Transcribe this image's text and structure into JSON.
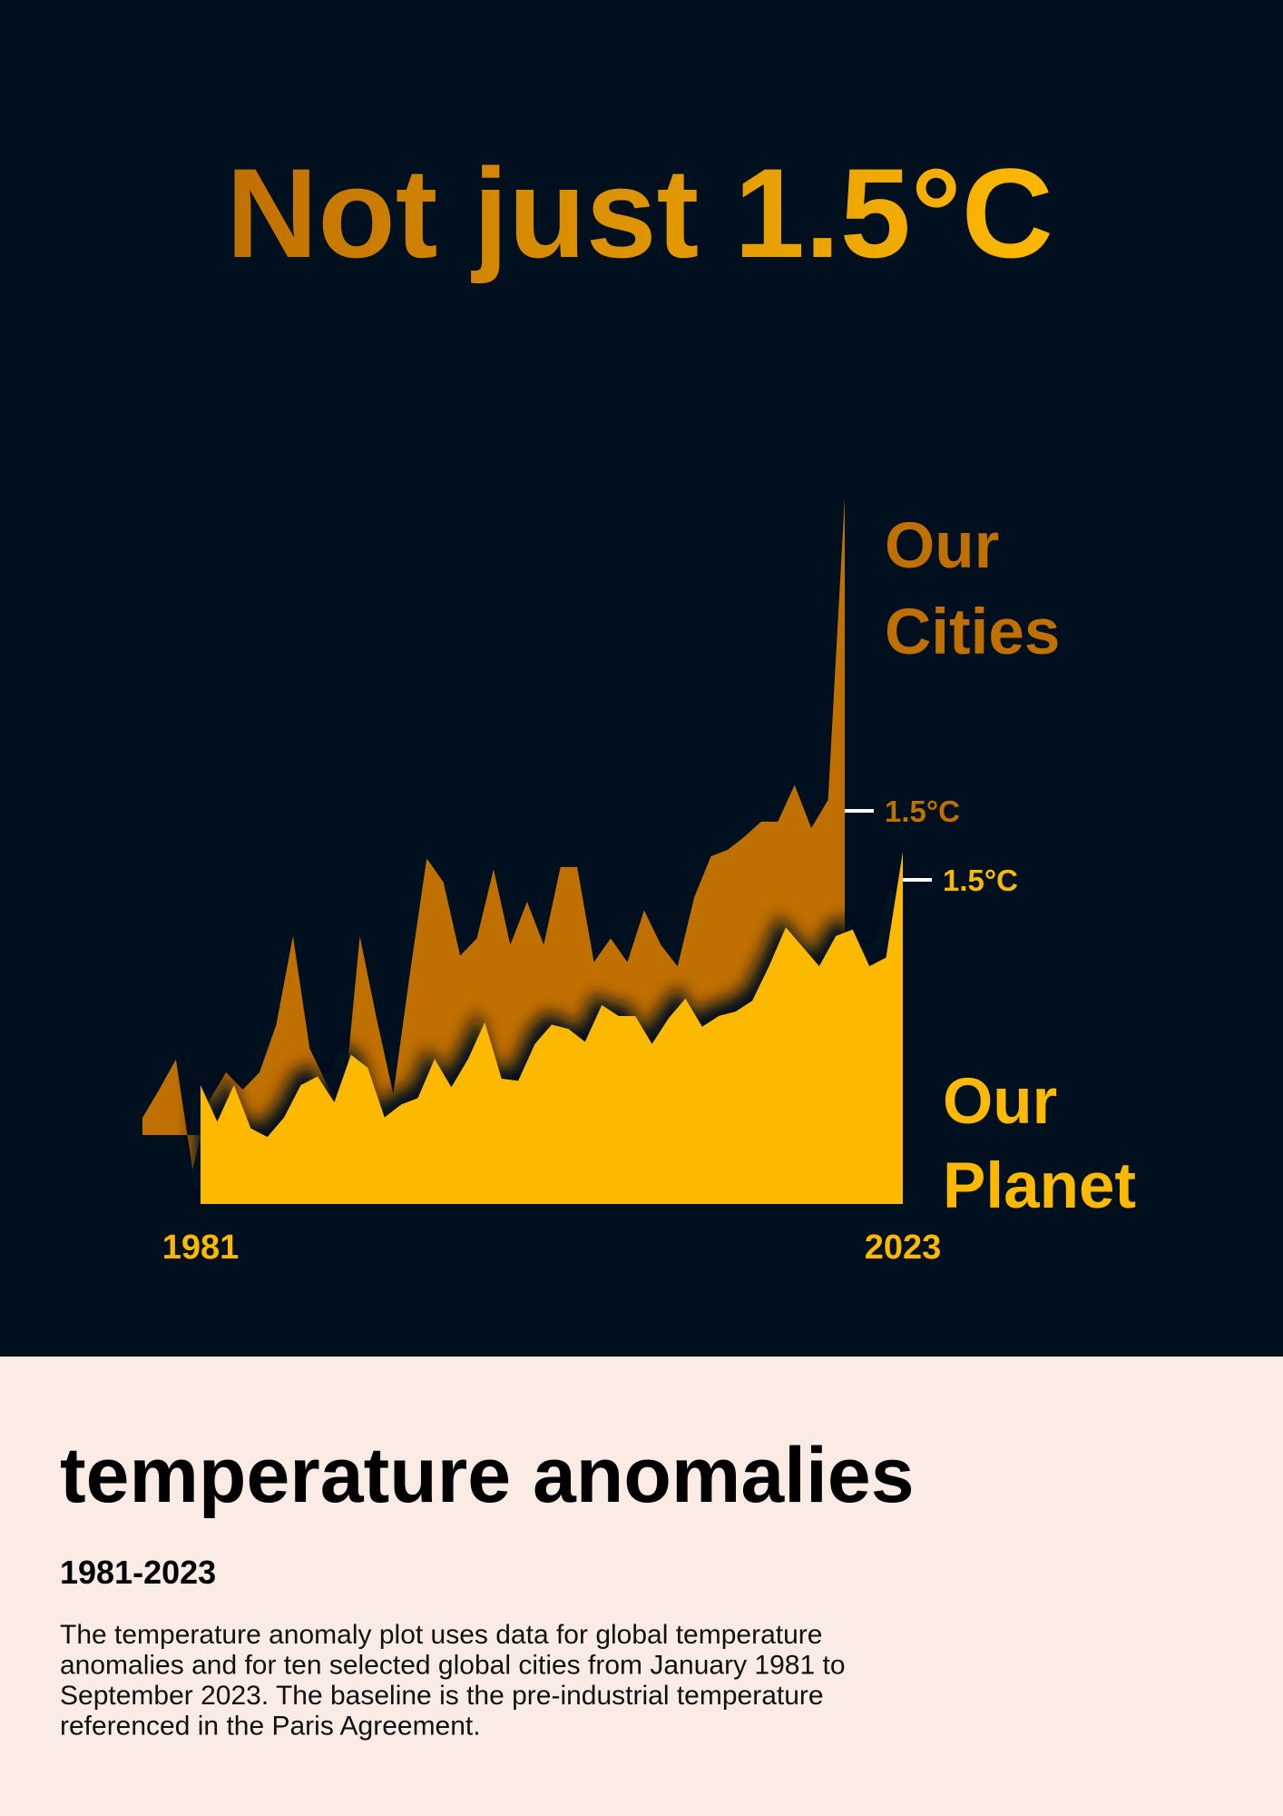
{
  "chart_data": {
    "type": "area",
    "title": "Not just 1.5°C",
    "x": [
      1981,
      1982,
      1983,
      1984,
      1985,
      1986,
      1987,
      1988,
      1989,
      1990,
      1991,
      1992,
      1993,
      1994,
      1995,
      1996,
      1997,
      1998,
      1999,
      2000,
      2001,
      2002,
      2003,
      2004,
      2005,
      2006,
      2007,
      2008,
      2009,
      2010,
      2011,
      2012,
      2013,
      2014,
      2015,
      2016,
      2017,
      2018,
      2019,
      2020,
      2021,
      2022,
      2023
    ],
    "xticks": [
      1981,
      2023
    ],
    "series": [
      {
        "name": "Our Cities",
        "color": "#c07000",
        "marker": {
          "value": 1.5,
          "label": "1.5°C"
        },
        "values": [
          0.08,
          0.21,
          0.35,
          -0.16,
          0.16,
          0.29,
          0.21,
          0.29,
          0.51,
          0.92,
          0.4,
          0.24,
          0.11,
          0.92,
          0.54,
          0.19,
          0.75,
          1.28,
          1.17,
          0.83,
          0.91,
          1.23,
          0.88,
          1.08,
          0.88,
          1.24,
          1.24,
          0.8,
          0.91,
          0.8,
          1.04,
          0.88,
          0.78,
          1.1,
          1.29,
          1.32,
          1.38,
          1.45,
          1.45,
          1.62,
          1.42,
          1.55,
          2.95
        ]
      },
      {
        "name": "Our Planet",
        "color": "#fdb900",
        "marker": {
          "value": 1.5,
          "label": "1.5°C"
        },
        "values": [
          0.55,
          0.38,
          0.55,
          0.35,
          0.31,
          0.4,
          0.55,
          0.59,
          0.47,
          0.69,
          0.63,
          0.4,
          0.46,
          0.49,
          0.67,
          0.54,
          0.67,
          0.84,
          0.58,
          0.57,
          0.74,
          0.83,
          0.81,
          0.75,
          0.92,
          0.87,
          0.87,
          0.74,
          0.86,
          0.95,
          0.82,
          0.87,
          0.89,
          0.94,
          1.1,
          1.28,
          1.19,
          1.1,
          1.24,
          1.27,
          1.1,
          1.14,
          1.63
        ]
      }
    ]
  },
  "caption": {
    "title": "temperature anomalies",
    "subtitle": "1981-2023",
    "lines": [
      "The temperature anomaly plot uses data for global temperature",
      "anomalies and for ten selected global cities from January 1981 to",
      "September 2023. The baseline is the pre-industrial temperature",
      "referenced in the Paris Agreement."
    ]
  }
}
